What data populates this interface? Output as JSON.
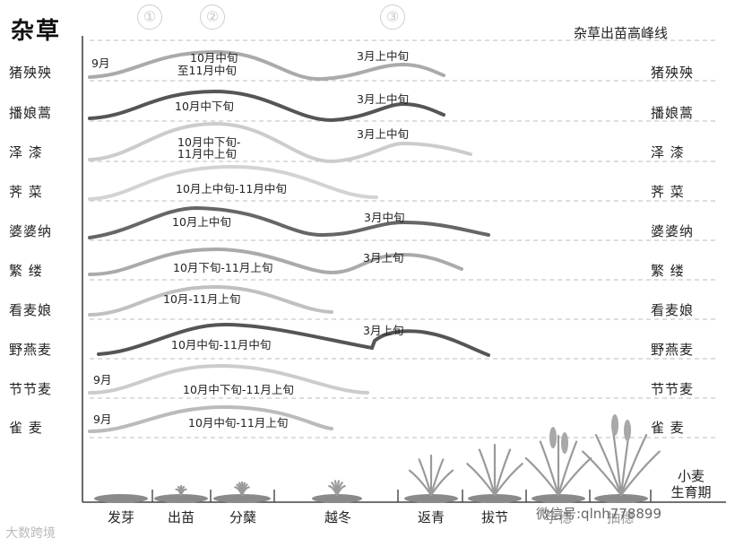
{
  "title": "杂草",
  "legend": {
    "title": "杂草出苗高峰线"
  },
  "circled_numbers": [
    "①",
    "②",
    "③"
  ],
  "weeds": [
    {
      "name": "猪殃殃",
      "labels": [
        "9月",
        "10月中旬",
        "至11月中旬",
        "3月上中旬"
      ],
      "color": "#aaaaaa"
    },
    {
      "name": "播娘蒿",
      "labels": [
        "10月中下旬",
        "3月上中旬"
      ],
      "color": "#555555"
    },
    {
      "name": "泽 漆",
      "labels": [
        "10月中下旬-",
        "11月中上旬",
        "3月上中旬"
      ],
      "color": "#cccccc"
    },
    {
      "name": "荠 菜",
      "labels": [
        "10月上中旬-11月中旬"
      ],
      "color": "#d3d3d3"
    },
    {
      "name": "婆婆纳",
      "labels": [
        "10月上中旬",
        "3月中旬"
      ],
      "color": "#666666"
    },
    {
      "name": "繁 缕",
      "labels": [
        "10月下旬-11月上旬",
        "3月上旬"
      ],
      "color": "#aaaaaa"
    },
    {
      "name": "看麦娘",
      "labels": [
        "10月-11月上旬"
      ],
      "color": "#c0c0c0"
    },
    {
      "name": "野燕麦",
      "labels": [
        "10月中旬-11月中旬",
        "3月上旬"
      ],
      "color": "#555555"
    },
    {
      "name": "节节麦",
      "labels": [
        "9月",
        "10月中下旬-11月上旬"
      ],
      "color": "#cccccc"
    },
    {
      "name": "雀 麦",
      "labels": [
        "9月",
        "10月中旬-11月上旬"
      ],
      "color": "#bbbbbb"
    }
  ],
  "stages": [
    "发芽",
    "出苗",
    "分蘖",
    "越冬",
    "返青",
    "拔节",
    "孕穗",
    "抽穗"
  ],
  "wheat_label": [
    "小麦",
    "生育期"
  ],
  "watermarks": {
    "left": "大数跨境",
    "right": "微信号:qlnh778899"
  }
}
